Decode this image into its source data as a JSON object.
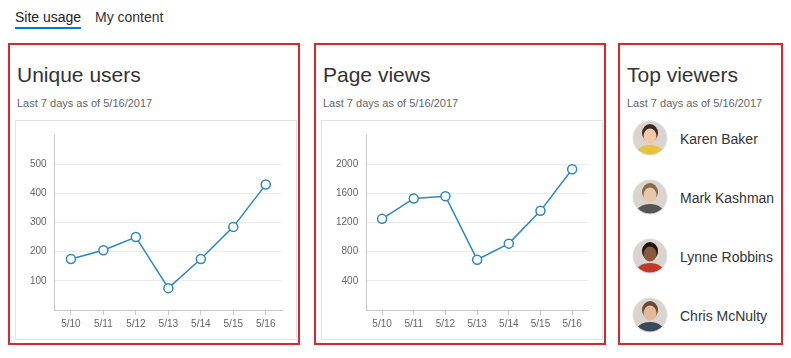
{
  "tabs": [
    "Site usage",
    "My content"
  ],
  "active_tab": "Site usage",
  "chart_data": [
    {
      "type": "line",
      "title": "Unique users",
      "subtitle": "Last 7 days as of 5/16/2017",
      "categories": [
        "5/10",
        "5/11",
        "5/12",
        "5/13",
        "5/14",
        "5/15",
        "5/16"
      ],
      "values": [
        175,
        205,
        250,
        75,
        175,
        285,
        430
      ],
      "color": "#2b88b8",
      "marker": "circle",
      "line_style": "solid",
      "ylim": [
        0,
        600
      ],
      "yticks": [
        100,
        200,
        300,
        400,
        500
      ],
      "grid": true
    },
    {
      "type": "line",
      "title": "Page views",
      "subtitle": "Last 7 days as of 5/16/2017",
      "categories": [
        "5/10",
        "5/11",
        "5/12",
        "5/13",
        "5/14",
        "5/15",
        "5/16"
      ],
      "values": [
        1250,
        1530,
        1560,
        690,
        910,
        1360,
        1930
      ],
      "color": "#2b88b8",
      "marker": "circle",
      "line_style": "solid",
      "ylim": [
        0,
        2400
      ],
      "yticks": [
        400,
        800,
        1200,
        1600,
        2000
      ],
      "grid": true
    }
  ],
  "top_viewers": {
    "title": "Top viewers",
    "subtitle": "Last 7 days as of 5/16/2017",
    "names": [
      "Karen Baker",
      "Mark Kashman",
      "Lynne Robbins",
      "Chris McNulty"
    ]
  }
}
